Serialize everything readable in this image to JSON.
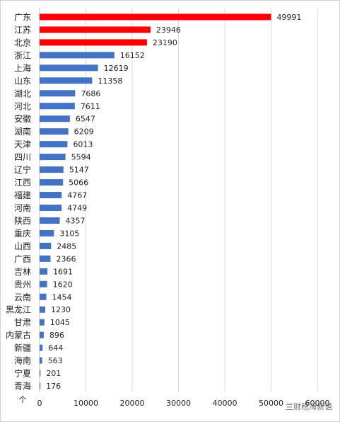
{
  "chart_data": {
    "type": "barh",
    "categories": [
      "广东",
      "江苏",
      "北京",
      "浙江",
      "上海",
      "山东",
      "湖北",
      "河北",
      "安徽",
      "湖南",
      "天津",
      "四川",
      "辽宁",
      "江西",
      "福建",
      "河南",
      "陕西",
      "重庆",
      "山西",
      "广西",
      "吉林",
      "贵州",
      "云南",
      "黑龙江",
      "甘肃",
      "内蒙古",
      "新疆",
      "海南",
      "宁夏",
      "青海"
    ],
    "values": [
      49991,
      23946,
      23190,
      16152,
      12619,
      11358,
      7686,
      7611,
      6547,
      6209,
      6013,
      5594,
      5147,
      5066,
      4767,
      4749,
      4357,
      3105,
      2485,
      2366,
      1691,
      1620,
      1454,
      1230,
      1045,
      896,
      644,
      563,
      201,
      176
    ],
    "colors": [
      "#ff0000",
      "#ff0000",
      "#ff0000",
      "#4472c4",
      "#4472c4",
      "#4472c4",
      "#4472c4",
      "#4472c4",
      "#4472c4",
      "#4472c4",
      "#4472c4",
      "#4472c4",
      "#4472c4",
      "#4472c4",
      "#4472c4",
      "#4472c4",
      "#4472c4",
      "#4472c4",
      "#4472c4",
      "#4472c4",
      "#4472c4",
      "#4472c4",
      "#4472c4",
      "#4472c4",
      "#4472c4",
      "#4472c4",
      "#4472c4",
      "#4472c4",
      "#4472c4",
      "#4472c4"
    ],
    "xlim": [
      0,
      60000
    ],
    "xticks": [
      0,
      10000,
      20000,
      30000,
      40000,
      50000,
      60000
    ],
    "grid": true,
    "unit_label": "个",
    "watermark": "兰财税海新语"
  }
}
